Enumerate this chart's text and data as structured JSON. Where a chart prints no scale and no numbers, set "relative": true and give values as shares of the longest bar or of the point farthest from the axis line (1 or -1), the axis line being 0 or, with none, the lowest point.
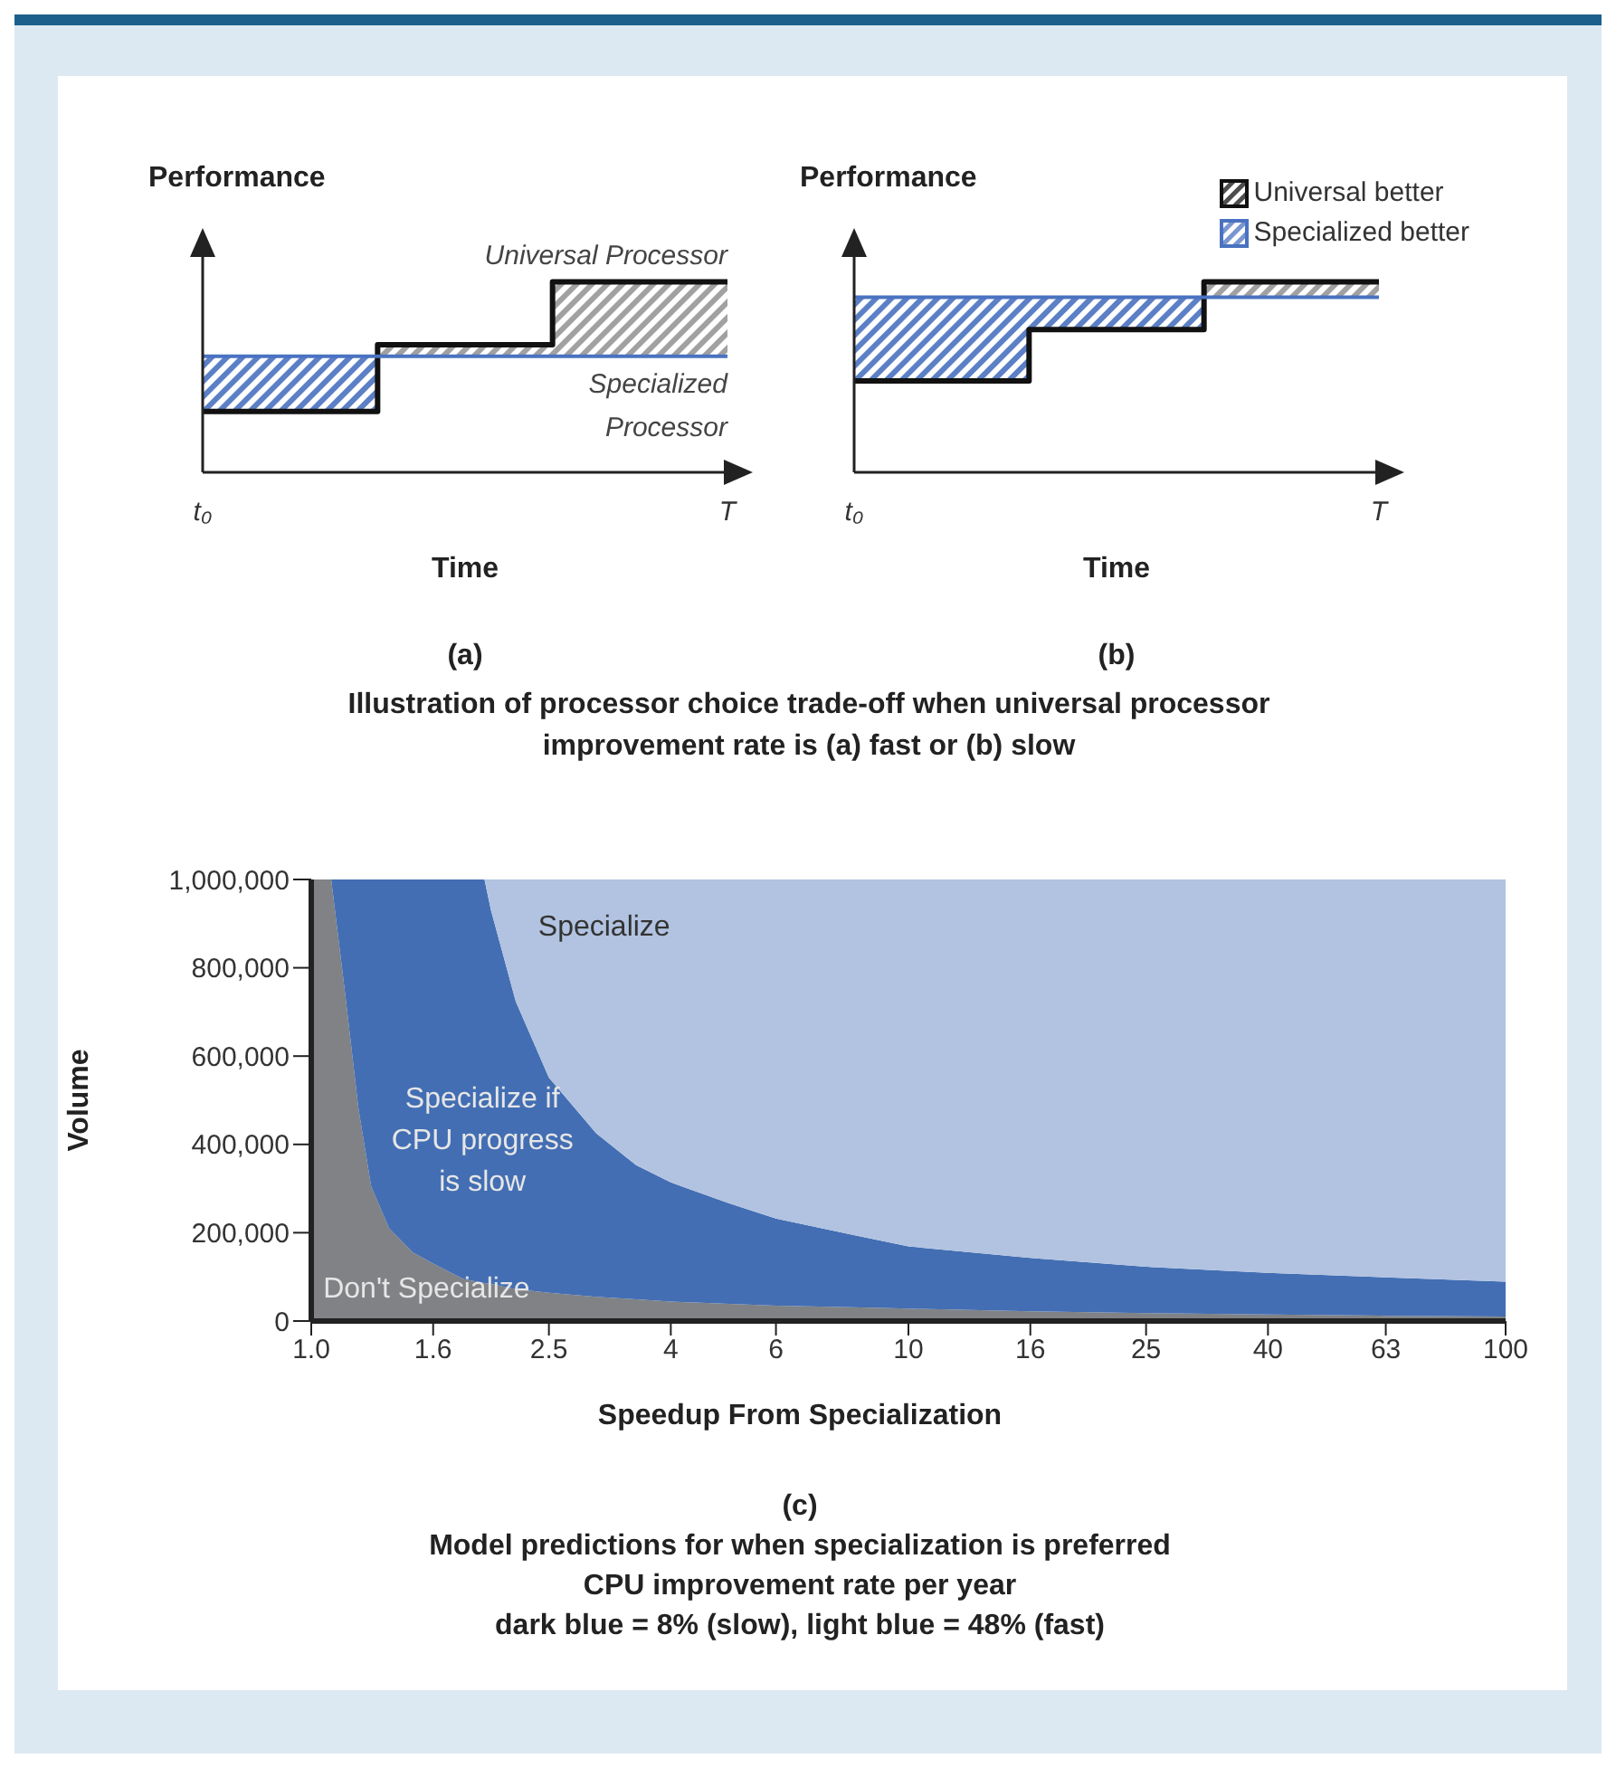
{
  "chart_data": [
    {
      "type": "step",
      "title": "(a)",
      "ylabel": "Performance",
      "xlabel": "Time",
      "categories": [
        "t₀",
        null,
        null,
        "T"
      ],
      "relative": true,
      "legend": false,
      "series": [
        {
          "name": "Universal Processor",
          "type": "step",
          "color": "#111111",
          "values": [
            0.32,
            0.67,
            1,
            1
          ],
          "lower": [
            0.61,
            0.61,
            0.61,
            0.61
          ],
          "upper": [
            0.61,
            0.67,
            1,
            1
          ]
        },
        {
          "name": "Specialized Processor",
          "type": "step",
          "color": "#4a72c0",
          "values": [
            0.61,
            0.61,
            0.61,
            0.61
          ],
          "lower": [
            0.32,
            0.61,
            0.61,
            0.61
          ],
          "upper": [
            0.61,
            0.61,
            0.61,
            0.61
          ]
        }
      ]
    },
    {
      "type": "step",
      "title": "(b)",
      "ylabel": "Performance",
      "xlabel": "Time",
      "categories": [
        "t₀",
        null,
        null,
        "T"
      ],
      "relative": true,
      "legend": "top right",
      "annotations": [
        "Illustration of processor choice trade-off when universal processor improvement rate is (a) fast or (b) slow"
      ],
      "series": [
        {
          "name": "Universal better",
          "type": "step",
          "color": "#111111",
          "values": [
            0.48,
            0.75,
            1,
            1
          ],
          "lower": [
            0.92,
            0.92,
            0.92,
            0.92
          ],
          "upper": [
            0.92,
            0.92,
            1,
            1
          ]
        },
        {
          "name": "Specialized better",
          "type": "step",
          "color": "#4a72c0",
          "values": [
            0.92,
            0.92,
            0.92,
            0.92
          ],
          "lower": [
            0.48,
            0.75,
            0.92,
            0.92
          ],
          "upper": [
            0.92,
            0.92,
            0.92,
            0.92
          ]
        }
      ]
    },
    {
      "type": "area",
      "title": "(c)",
      "xlabel": "Speedup From Specialization",
      "ylabel": "Volume",
      "stacked": true,
      "log": "x",
      "legend": false,
      "grid": false,
      "annotations": [
        "Model predictions for when specialization is preferred",
        "CPU improvement rate per year",
        "dark blue = 8% (slow), light blue = 48% (fast)"
      ],
      "xlim": [
        1,
        100
      ],
      "xticks": [
        {
          "value": 1,
          "label": "1.0"
        },
        1.6,
        2.5,
        4,
        6,
        10,
        16,
        25,
        40,
        63,
        100
      ],
      "ylim": [
        0,
        1000000
      ],
      "yticks": [
        0,
        {
          "value": 200000,
          "label": "200,000"
        },
        {
          "value": 400000,
          "label": "400,000"
        },
        {
          "value": 600000,
          "label": "600,000"
        },
        {
          "value": 800000,
          "label": "800,000"
        },
        {
          "value": 1000000,
          "label": "1,000,000"
        }
      ],
      "x": [
        1,
        1.05,
        1.08,
        1.14,
        1.2,
        1.26,
        1.35,
        1.48,
        1.6,
        1.8,
        1.95,
        2,
        2.2,
        2.5,
        3,
        3.5,
        4,
        5,
        6,
        8,
        10,
        16,
        25,
        40,
        63,
        100
      ],
      "series": [
        {
          "name": "Don't Specialize",
          "color": "#808285",
          "values": [
            1000000,
            1000000,
            1000000,
            740000,
            480000,
            305000,
            210000,
            155000,
            130000,
            95000,
            86000,
            84000,
            72000,
            64000,
            55000,
            49000,
            44000,
            39000,
            35000,
            31000,
            28000,
            22000,
            18000,
            15000,
            12000,
            10000
          ]
        },
        {
          "name": "Specialize if CPU progress is slow",
          "color": "#436eb3",
          "values": [
            0,
            0,
            0,
            260000,
            520000,
            695000,
            790000,
            845000,
            870000,
            905000,
            914000,
            846000,
            652000,
            487000,
            370000,
            304000,
            270000,
            228000,
            197000,
            165000,
            141000,
            121000,
            105000,
            94000,
            87000,
            79000
          ]
        },
        {
          "name": "Specialize",
          "color": "#b1c3e0",
          "values": [
            0,
            0,
            0,
            0,
            0,
            0,
            0,
            0,
            0,
            0,
            0,
            70000,
            276000,
            449000,
            575000,
            647000,
            686000,
            733000,
            768000,
            804000,
            831000,
            857000,
            877000,
            891000,
            901000,
            911000
          ]
        }
      ]
    }
  ]
}
